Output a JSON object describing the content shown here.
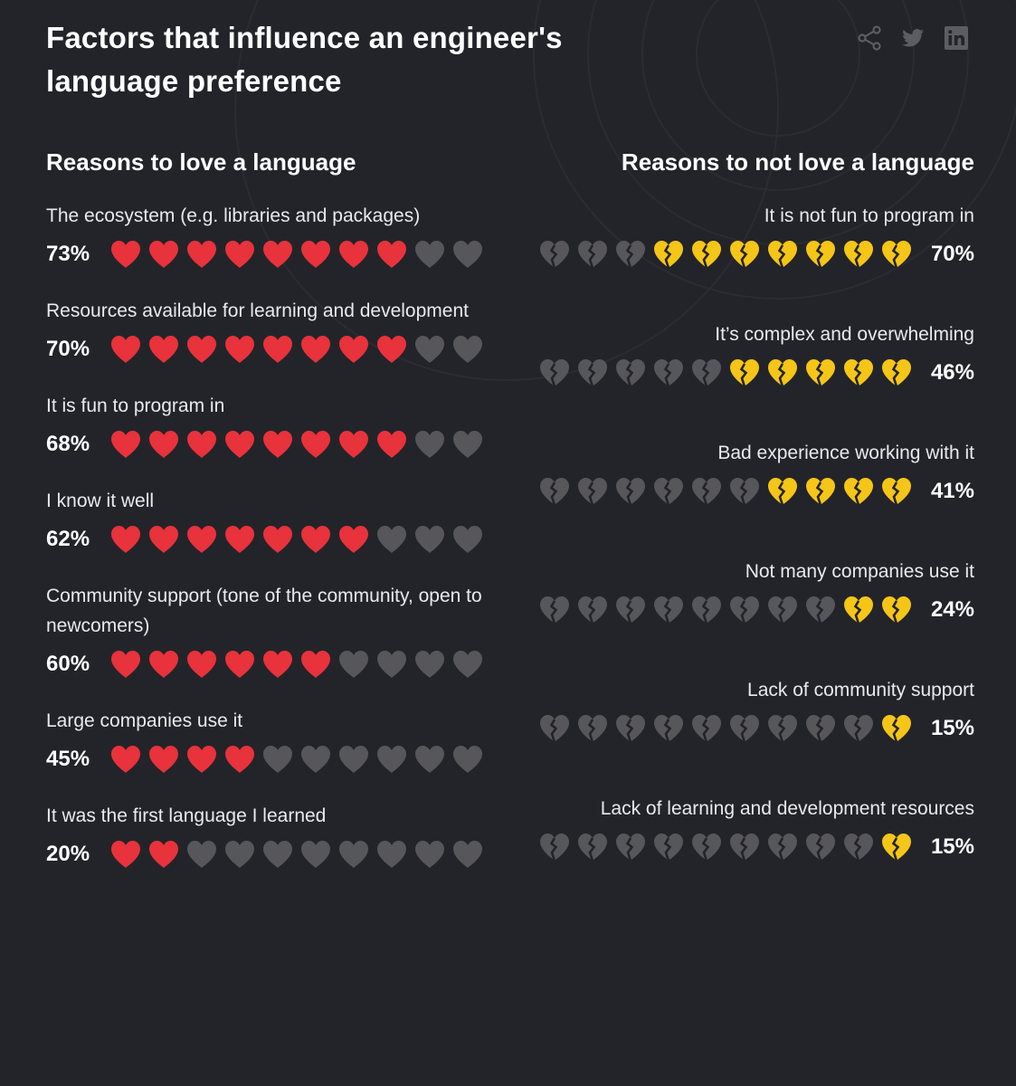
{
  "title": "Factors that influence an engineer's language preference",
  "share": {
    "icons": [
      "share-icon",
      "twitter-icon",
      "linkedin-icon"
    ]
  },
  "colors": {
    "background": "#232429",
    "love_heart": "#e8323c",
    "broken_heart": "#f5c518",
    "inactive_heart": "#56565b"
  },
  "chart_data": {
    "type": "bar",
    "units": "%",
    "icons_per_row": 10,
    "groups": [
      {
        "name": "Reasons to love a language",
        "items": [
          {
            "label": "The ecosystem (e.g. libraries and packages)",
            "value": 73,
            "value_label": "73%",
            "filled": 8
          },
          {
            "label": "Resources available for learning and development",
            "value": 70,
            "value_label": "70%",
            "filled": 8
          },
          {
            "label": "It is fun to program in",
            "value": 68,
            "value_label": "68%",
            "filled": 8
          },
          {
            "label": "I know it well",
            "value": 62,
            "value_label": "62%",
            "filled": 7
          },
          {
            "label": "Community support (tone of the community, open to newcomers)",
            "value": 60,
            "value_label": "60%",
            "filled": 6
          },
          {
            "label": "Large companies use it",
            "value": 45,
            "value_label": "45%",
            "filled": 4
          },
          {
            "label": "It was the first language I learned",
            "value": 20,
            "value_label": "20%",
            "filled": 2
          }
        ]
      },
      {
        "name": "Reasons to not love a language",
        "items": [
          {
            "label": "It is not fun to program in",
            "value": 70,
            "value_label": "70%",
            "filled": 7
          },
          {
            "label": "It’s complex and overwhelming",
            "value": 46,
            "value_label": "46%",
            "filled": 5
          },
          {
            "label": "Bad experience working with it",
            "value": 41,
            "value_label": "41%",
            "filled": 4
          },
          {
            "label": "Not many companies use it",
            "value": 24,
            "value_label": "24%",
            "filled": 2
          },
          {
            "label": "Lack of community support",
            "value": 15,
            "value_label": "15%",
            "filled": 1
          },
          {
            "label": "Lack of learning and development resources",
            "value": 15,
            "value_label": "15%",
            "filled": 1
          }
        ]
      }
    ]
  }
}
